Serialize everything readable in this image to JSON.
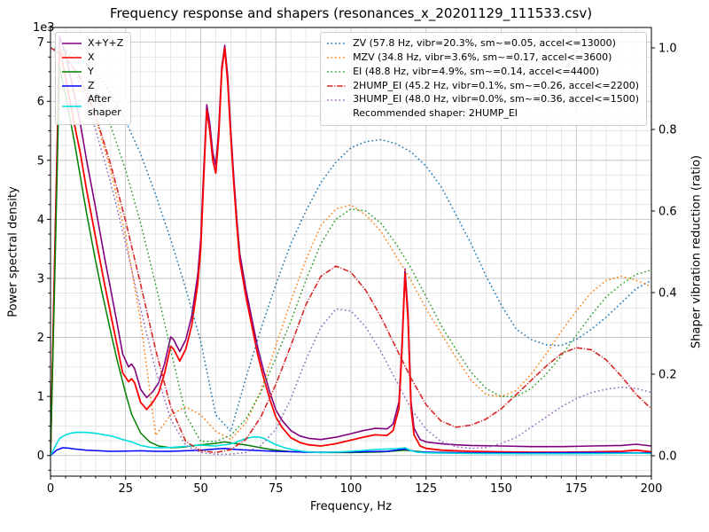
{
  "chart_data": {
    "type": "line",
    "title": "Frequency response and shapers (resonances_x_20201129_111533.csv)",
    "xlabel": "Frequency, Hz",
    "ylabel_left": "Power spectral density",
    "ylabel_right": "Shaper vibration reduction (ratio)",
    "y_left_offset_text": "1e3",
    "x_range": [
      0,
      200
    ],
    "x_major_step": 25,
    "x_minor_step": 5,
    "y_left_range": [
      -350,
      7250
    ],
    "y_left_major_step": 1000,
    "y_left_minor_step": 250,
    "y_left_tick_max": 7000,
    "y_right_range": [
      -0.05,
      1.05
    ],
    "y_right_ticks": [
      0,
      0.2,
      0.4,
      0.6,
      0.8,
      1.0
    ],
    "grid": {
      "major_color": "#bdbdbd",
      "minor_color": "#dedede"
    },
    "recommended_shaper": "2HUMP_EI",
    "series": [
      {
        "name": "x-plus-y-plus-z-psd",
        "axis": "left",
        "color": "#800080",
        "style": "solid",
        "lw": 1.6,
        "x": [
          0,
          1.5,
          3,
          5,
          8,
          10,
          12,
          15,
          18,
          20,
          22,
          24,
          26,
          27,
          28,
          30,
          32,
          34,
          36,
          38,
          40,
          41,
          43,
          45,
          47,
          49,
          50,
          51,
          52,
          53,
          54,
          55,
          56,
          57,
          58,
          59,
          60,
          61,
          62,
          63,
          65,
          67,
          69,
          71,
          73,
          75,
          77,
          80,
          83,
          86,
          90,
          95,
          100,
          104,
          108,
          112,
          114,
          116,
          117,
          118,
          119,
          120,
          121,
          123,
          125,
          130,
          135,
          140,
          150,
          160,
          170,
          180,
          190,
          195,
          200
        ],
        "y": [
          0,
          3700,
          7100,
          6800,
          6100,
          5600,
          5000,
          4200,
          3350,
          2820,
          2280,
          1720,
          1500,
          1550,
          1470,
          1120,
          980,
          1080,
          1230,
          1560,
          2010,
          1960,
          1760,
          1960,
          2360,
          3060,
          3660,
          4860,
          5940,
          5630,
          5130,
          4910,
          5530,
          6580,
          6950,
          6420,
          5520,
          4720,
          4020,
          3420,
          2820,
          2320,
          1820,
          1420,
          1070,
          770,
          600,
          420,
          330,
          290,
          270,
          310,
          370,
          420,
          460,
          450,
          530,
          910,
          1900,
          3160,
          2420,
          910,
          460,
          270,
          230,
          200,
          180,
          170,
          160,
          150,
          150,
          160,
          170,
          190,
          160
        ]
      },
      {
        "name": "x-psd",
        "axis": "left",
        "color": "#ff0000",
        "style": "solid",
        "lw": 1.8,
        "x": [
          0,
          1.5,
          3,
          5,
          8,
          10,
          12,
          15,
          18,
          20,
          22,
          24,
          26,
          27,
          28,
          30,
          32,
          34,
          36,
          38,
          40,
          41,
          43,
          45,
          47,
          49,
          50,
          51,
          52,
          53,
          54,
          55,
          56,
          57,
          58,
          59,
          60,
          61,
          62,
          63,
          65,
          67,
          69,
          71,
          73,
          75,
          77,
          80,
          83,
          86,
          90,
          95,
          100,
          104,
          108,
          112,
          114,
          116,
          117,
          118,
          119,
          120,
          121,
          123,
          125,
          130,
          135,
          140,
          150,
          160,
          170,
          180,
          190,
          195,
          200
        ],
        "y": [
          0,
          3500,
          6900,
          6400,
          5600,
          5100,
          4500,
          3700,
          2900,
          2400,
          1900,
          1400,
          1250,
          1300,
          1230,
          900,
          780,
          900,
          1060,
          1400,
          1850,
          1800,
          1600,
          1800,
          2200,
          2900,
          3500,
          4700,
          5850,
          5500,
          5000,
          4780,
          5400,
          6500,
          6900,
          6300,
          5400,
          4600,
          3900,
          3300,
          2700,
          2200,
          1700,
          1300,
          950,
          650,
          480,
          300,
          220,
          180,
          160,
          200,
          260,
          310,
          350,
          340,
          420,
          800,
          1800,
          3080,
          2300,
          800,
          350,
          160,
          120,
          90,
          80,
          70,
          60,
          55,
          55,
          60,
          70,
          90,
          60
        ]
      },
      {
        "name": "y-psd",
        "axis": "left",
        "color": "#008000",
        "style": "solid",
        "lw": 1.5,
        "x": [
          0,
          1.5,
          3,
          5,
          8,
          10,
          12,
          15,
          17,
          20,
          22,
          25,
          27,
          30,
          33,
          36,
          40,
          44,
          48,
          52,
          55,
          58,
          62,
          66,
          70,
          75,
          80,
          90,
          100,
          110,
          118,
          125,
          140,
          160,
          180,
          200
        ],
        "y": [
          0,
          3200,
          6600,
          6100,
          5300,
          4700,
          4100,
          3300,
          2800,
          2100,
          1650,
          1050,
          700,
          380,
          230,
          160,
          130,
          140,
          170,
          190,
          205,
          230,
          200,
          170,
          130,
          90,
          65,
          50,
          50,
          60,
          90,
          55,
          45,
          40,
          45,
          40
        ]
      },
      {
        "name": "z-psd",
        "axis": "left",
        "color": "#0000ff",
        "style": "solid",
        "lw": 1.5,
        "x": [
          0,
          2,
          4,
          6,
          8,
          12,
          16,
          20,
          25,
          30,
          35,
          40,
          45,
          50,
          55,
          58,
          62,
          68,
          75,
          85,
          95,
          105,
          112,
          118,
          122,
          130,
          145,
          160,
          180,
          200
        ],
        "y": [
          0,
          90,
          130,
          125,
          110,
          90,
          80,
          70,
          75,
          80,
          70,
          70,
          80,
          90,
          110,
          120,
          100,
          85,
          70,
          55,
          55,
          65,
          70,
          110,
          60,
          50,
          45,
          45,
          50,
          45
        ]
      },
      {
        "name": "after-shaper-psd",
        "axis": "left",
        "color": "#00dddd",
        "style": "solid",
        "lw": 1.6,
        "x": [
          0,
          1.5,
          3,
          5,
          7,
          9,
          12,
          15,
          18,
          21,
          24,
          27,
          30,
          33,
          36,
          40,
          44,
          47,
          50,
          53,
          55,
          57,
          59,
          61,
          63,
          65,
          67,
          69,
          71,
          73,
          75,
          78,
          81,
          84,
          87,
          90,
          93,
          96,
          100,
          104,
          108,
          112,
          115,
          117,
          118,
          120,
          122,
          125,
          130,
          140,
          150,
          160,
          170,
          180,
          190,
          195,
          200
        ],
        "y": [
          0,
          150,
          290,
          350,
          380,
          395,
          390,
          375,
          350,
          320,
          270,
          230,
          170,
          140,
          130,
          135,
          150,
          160,
          175,
          165,
          160,
          175,
          185,
          210,
          250,
          285,
          310,
          315,
          290,
          235,
          185,
          130,
          95,
          70,
          55,
          50,
          55,
          60,
          70,
          85,
          100,
          110,
          115,
          125,
          130,
          80,
          55,
          45,
          40,
          35,
          32,
          30,
          30,
          32,
          36,
          40,
          33
        ]
      },
      {
        "name": "zv-shaper",
        "axis": "right",
        "color": "#1f77b4",
        "style": "dotted",
        "lw": 1.5,
        "x": [
          0,
          5,
          10,
          15,
          20,
          25,
          30,
          35,
          40,
          45,
          50,
          55,
          60,
          65,
          70,
          75,
          80,
          85,
          90,
          95,
          100,
          105,
          110,
          115,
          120,
          125,
          130,
          135,
          140,
          145,
          150,
          155,
          160,
          165,
          170,
          175,
          180,
          185,
          190,
          195,
          200
        ],
        "y": [
          1.0,
          0.995,
          0.975,
          0.94,
          0.89,
          0.82,
          0.74,
          0.64,
          0.53,
          0.41,
          0.28,
          0.1,
          0.06,
          0.19,
          0.31,
          0.42,
          0.52,
          0.6,
          0.67,
          0.72,
          0.755,
          0.77,
          0.775,
          0.765,
          0.745,
          0.71,
          0.66,
          0.59,
          0.52,
          0.44,
          0.37,
          0.31,
          0.285,
          0.272,
          0.27,
          0.285,
          0.31,
          0.34,
          0.375,
          0.41,
          0.43
        ]
      },
      {
        "name": "mzv-shaper",
        "axis": "right",
        "color": "#ff7f0e",
        "style": "dotted",
        "lw": 1.5,
        "x": [
          0,
          5,
          10,
          15,
          20,
          25,
          30,
          35,
          40,
          45,
          50,
          55,
          60,
          65,
          70,
          75,
          80,
          85,
          90,
          95,
          100,
          105,
          110,
          115,
          120,
          125,
          130,
          135,
          140,
          145,
          150,
          155,
          160,
          165,
          170,
          175,
          180,
          185,
          190,
          195,
          200
        ],
        "y": [
          1.0,
          0.98,
          0.925,
          0.83,
          0.7,
          0.54,
          0.33,
          0.05,
          0.1,
          0.12,
          0.1,
          0.06,
          0.04,
          0.08,
          0.16,
          0.27,
          0.38,
          0.48,
          0.565,
          0.605,
          0.615,
          0.59,
          0.55,
          0.49,
          0.43,
          0.36,
          0.3,
          0.24,
          0.185,
          0.15,
          0.145,
          0.16,
          0.2,
          0.25,
          0.305,
          0.355,
          0.4,
          0.43,
          0.44,
          0.43,
          0.415
        ]
      },
      {
        "name": "ei-shaper",
        "axis": "right",
        "color": "#2ca02c",
        "style": "dotted",
        "lw": 1.5,
        "x": [
          0,
          5,
          10,
          15,
          20,
          25,
          30,
          35,
          40,
          45,
          50,
          55,
          60,
          65,
          70,
          75,
          80,
          85,
          90,
          95,
          100,
          105,
          110,
          115,
          120,
          125,
          130,
          135,
          140,
          145,
          150,
          155,
          160,
          165,
          170,
          175,
          180,
          185,
          190,
          195,
          200
        ],
        "y": [
          1.0,
          0.99,
          0.955,
          0.895,
          0.81,
          0.7,
          0.57,
          0.42,
          0.26,
          0.1,
          0.035,
          0.035,
          0.05,
          0.09,
          0.155,
          0.24,
          0.33,
          0.43,
          0.52,
          0.58,
          0.605,
          0.6,
          0.57,
          0.52,
          0.46,
          0.39,
          0.32,
          0.26,
          0.205,
          0.165,
          0.145,
          0.145,
          0.165,
          0.2,
          0.245,
          0.295,
          0.345,
          0.39,
          0.42,
          0.445,
          0.455
        ]
      },
      {
        "name": "2hump-ei-shaper",
        "axis": "right",
        "color": "#d62728",
        "style": "dashdot",
        "lw": 1.6,
        "x": [
          0,
          5,
          10,
          15,
          20,
          25,
          30,
          35,
          40,
          45,
          50,
          55,
          60,
          65,
          70,
          75,
          80,
          85,
          90,
          95,
          100,
          105,
          110,
          115,
          120,
          125,
          130,
          135,
          140,
          145,
          150,
          155,
          160,
          165,
          170,
          175,
          180,
          185,
          190,
          195,
          200
        ],
        "y": [
          1.0,
          0.98,
          0.925,
          0.835,
          0.715,
          0.575,
          0.42,
          0.26,
          0.12,
          0.035,
          0.012,
          0.008,
          0.015,
          0.04,
          0.095,
          0.175,
          0.27,
          0.37,
          0.44,
          0.465,
          0.45,
          0.405,
          0.34,
          0.265,
          0.19,
          0.125,
          0.085,
          0.07,
          0.075,
          0.09,
          0.115,
          0.15,
          0.185,
          0.22,
          0.25,
          0.265,
          0.26,
          0.235,
          0.195,
          0.15,
          0.115
        ]
      },
      {
        "name": "3hump-ei-shaper",
        "axis": "right",
        "color": "#9467bd",
        "style": "dotted",
        "lw": 1.5,
        "x": [
          0,
          5,
          10,
          15,
          20,
          25,
          30,
          35,
          40,
          45,
          50,
          55,
          60,
          65,
          70,
          75,
          80,
          85,
          90,
          95,
          100,
          105,
          110,
          115,
          120,
          125,
          130,
          135,
          140,
          145,
          150,
          155,
          160,
          165,
          170,
          175,
          180,
          185,
          190,
          195,
          200
        ],
        "y": [
          1.0,
          0.975,
          0.91,
          0.8,
          0.67,
          0.52,
          0.36,
          0.21,
          0.09,
          0.025,
          0.008,
          0.004,
          0.004,
          0.008,
          0.025,
          0.065,
          0.14,
          0.235,
          0.315,
          0.36,
          0.355,
          0.315,
          0.255,
          0.185,
          0.115,
          0.065,
          0.035,
          0.022,
          0.018,
          0.02,
          0.03,
          0.045,
          0.07,
          0.095,
          0.12,
          0.14,
          0.155,
          0.163,
          0.168,
          0.165,
          0.155
        ]
      }
    ],
    "legend_left": {
      "entries": [
        {
          "label": "X+Y+Z",
          "color": "#800080",
          "style": "solid"
        },
        {
          "label": "X",
          "color": "#ff0000",
          "style": "solid"
        },
        {
          "label": "Y",
          "color": "#008000",
          "style": "solid"
        },
        {
          "label": "Z",
          "color": "#0000ff",
          "style": "solid"
        },
        {
          "label": "After\nshaper",
          "color": "#00dddd",
          "style": "solid"
        }
      ]
    },
    "legend_right": {
      "entries": [
        {
          "label": "ZV (57.8 Hz, vibr=20.3%, sm~=0.05, accel<=13000)",
          "color": "#1f77b4",
          "style": "dotted"
        },
        {
          "label": "MZV (34.8 Hz, vibr=3.6%, sm~=0.17, accel<=3600)",
          "color": "#ff7f0e",
          "style": "dotted"
        },
        {
          "label": "EI (48.8 Hz, vibr=4.9%, sm~=0.14, accel<=4400)",
          "color": "#2ca02c",
          "style": "dotted"
        },
        {
          "label": "2HUMP_EI (45.2 Hz, vibr=0.1%, sm~=0.26, accel<=2200)",
          "color": "#d62728",
          "style": "dashdot"
        },
        {
          "label": "3HUMP_EI (48.0 Hz, vibr=0.0%, sm~=0.36, accel<=1500)",
          "color": "#9467bd",
          "style": "dotted"
        },
        {
          "label": "Recommended shaper: 2HUMP_EI",
          "color": "#000000",
          "style": "none"
        }
      ]
    }
  }
}
